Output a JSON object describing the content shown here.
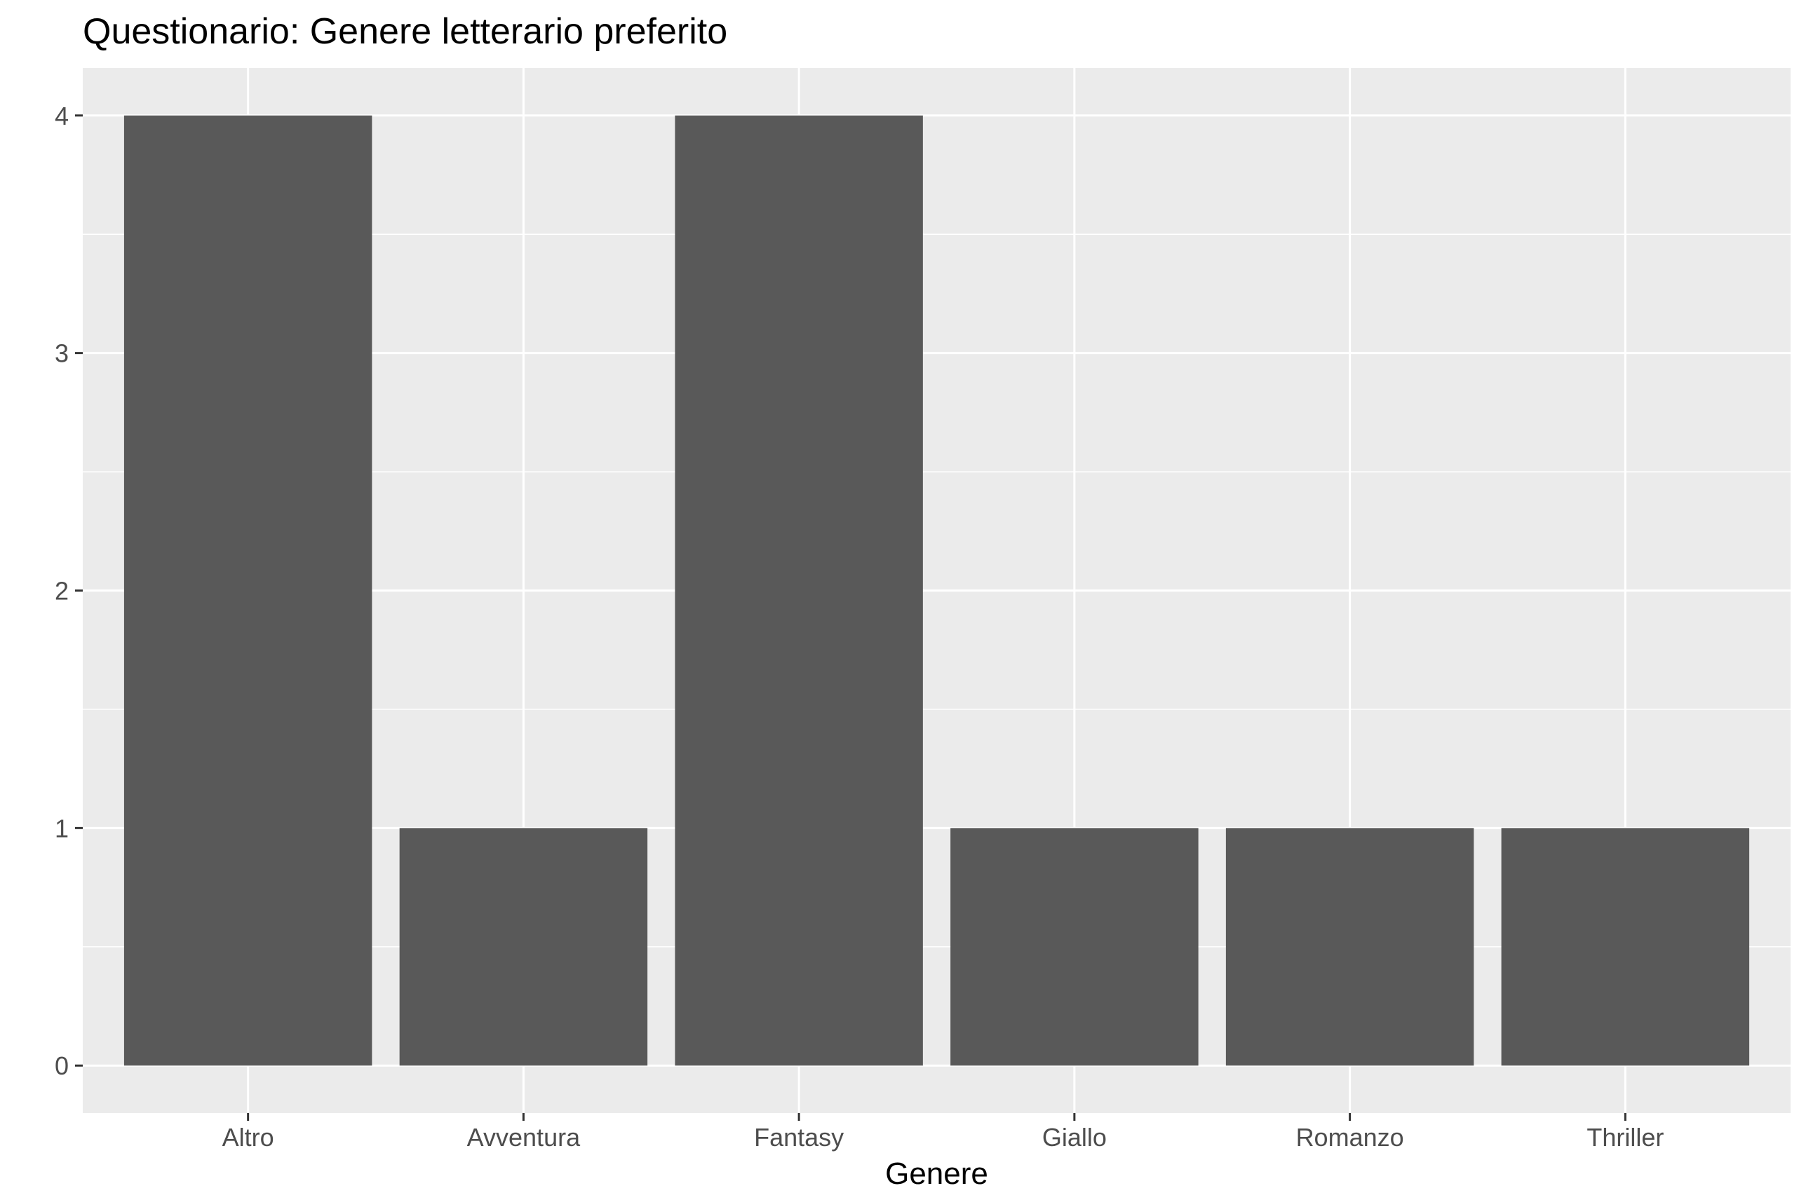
{
  "chart_data": {
    "type": "bar",
    "title": "Questionario: Genere letterario preferito",
    "xlabel": "Genere",
    "ylabel": "",
    "categories": [
      "Altro",
      "Avventura",
      "Fantasy",
      "Giallo",
      "Romanzo",
      "Thriller"
    ],
    "values": [
      4,
      1,
      4,
      1,
      1,
      1
    ],
    "ylim": [
      -0.2,
      4.2
    ],
    "yticks": [
      0,
      1,
      2,
      3,
      4
    ],
    "ytick_labels": [
      "0",
      "1",
      "2",
      "3",
      "4"
    ],
    "grid": true,
    "legend": "none",
    "colors": {
      "bar": "#595959",
      "panel_background": "#ebebeb",
      "grid": "#ffffff",
      "tick_text": "#4d4d4d",
      "tick_mark": "#333333"
    }
  }
}
